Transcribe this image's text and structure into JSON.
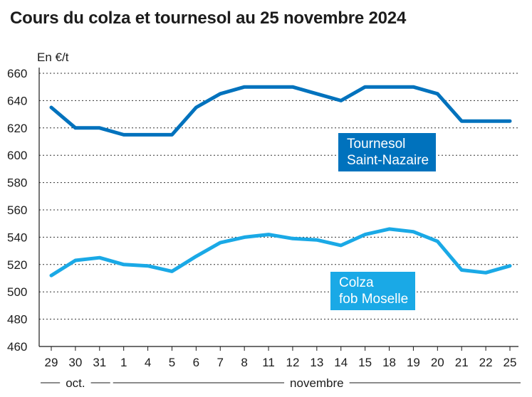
{
  "title": "Cours du colza et tournesol au 25 novembre 2024",
  "colors": {
    "tournesol": "#0072bd",
    "colza": "#1aa9e6",
    "grid": "#333333",
    "axis": "#1a1a1a"
  },
  "chart_data": {
    "type": "line",
    "title": "Cours du colza et tournesol au 25 novembre 2024",
    "unit_label": "En €/t",
    "ylim": [
      460,
      660
    ],
    "yticks": [
      460,
      480,
      500,
      520,
      540,
      560,
      580,
      600,
      620,
      640,
      660
    ],
    "grid": true,
    "x": [
      "29",
      "30",
      "31",
      "1",
      "4",
      "5",
      "6",
      "7",
      "8",
      "11",
      "12",
      "13",
      "14",
      "15",
      "18",
      "19",
      "20",
      "21",
      "22",
      "25"
    ],
    "month_groups": [
      {
        "label": "oct.",
        "start": 0,
        "end": 2
      },
      {
        "label": "novembre",
        "start": 3,
        "end": 19
      }
    ],
    "series": [
      {
        "name": "Tournesol Saint-Nazaire",
        "label_lines": [
          "Tournesol",
          "Saint-Nazaire"
        ],
        "color": "#0072bd",
        "values": [
          635,
          620,
          620,
          615,
          615,
          615,
          635,
          645,
          650,
          650,
          650,
          645,
          640,
          650,
          650,
          650,
          645,
          625,
          625,
          625
        ]
      },
      {
        "name": "Colza fob Moselle",
        "label_lines": [
          "Colza",
          "fob Moselle"
        ],
        "color": "#1aa9e6",
        "values": [
          512,
          523,
          525,
          520,
          519,
          515,
          526,
          536,
          540,
          542,
          539,
          538,
          534,
          542,
          546,
          544,
          537,
          516,
          514,
          519
        ]
      }
    ]
  }
}
